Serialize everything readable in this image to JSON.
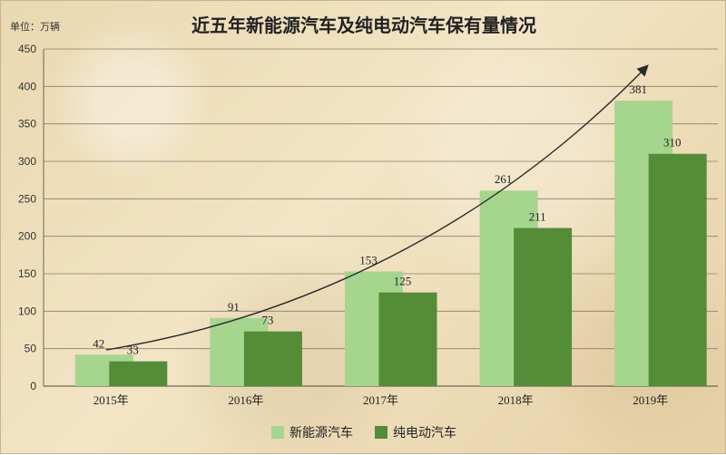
{
  "header": {
    "title": "近五年新能源汽车及纯电动汽车保有量情况",
    "unit": "单位：万辆"
  },
  "colors": {
    "series_light": "#a6d58e",
    "series_dark": "#548c37",
    "grid": "#8b7f6a",
    "arrow": "#2a2a2a"
  },
  "chart_data": {
    "type": "bar",
    "title": "近五年新能源汽车及纯电动汽车保有量情况",
    "xlabel": "",
    "ylabel": "",
    "categories": [
      "2015年",
      "2016年",
      "2017年",
      "2018年",
      "2019年"
    ],
    "series": [
      {
        "name": "新能源汽车",
        "values": [
          42,
          91,
          153,
          261,
          381
        ]
      },
      {
        "name": "纯电动汽车",
        "values": [
          33,
          73,
          125,
          211,
          310
        ]
      }
    ],
    "ylim": [
      0,
      450
    ],
    "yticks": [
      0,
      50,
      100,
      150,
      200,
      250,
      300,
      350,
      400,
      450
    ],
    "grid": true,
    "legend_position": "bottom",
    "annotation": "upward trend arrow"
  }
}
